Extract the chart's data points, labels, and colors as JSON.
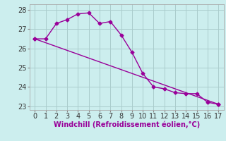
{
  "xlabel": "Windchill (Refroidissement éolien,°C)",
  "x_values": [
    0,
    1,
    2,
    3,
    4,
    5,
    6,
    7,
    8,
    9,
    10,
    11,
    12,
    13,
    14,
    15,
    16,
    17
  ],
  "line1": [
    26.5,
    26.5,
    27.3,
    27.5,
    27.8,
    27.85,
    27.3,
    27.4,
    26.7,
    25.8,
    24.7,
    24.0,
    23.9,
    23.7,
    23.65,
    23.65,
    23.2,
    23.1
  ],
  "line_color": "#990099",
  "line2_x": [
    0,
    17
  ],
  "line2_y": [
    26.5,
    23.1
  ],
  "bg_color": "#cceeee",
  "grid_color": "#aacccc",
  "ylim": [
    22.8,
    28.3
  ],
  "xlim": [
    -0.5,
    17.5
  ],
  "yticks": [
    23,
    24,
    25,
    26,
    27,
    28
  ],
  "xticks": [
    0,
    1,
    2,
    3,
    4,
    5,
    6,
    7,
    8,
    9,
    10,
    11,
    12,
    13,
    14,
    15,
    16,
    17
  ],
  "marker": "D",
  "markersize": 2.5,
  "linewidth": 1.0,
  "tick_fontsize": 7,
  "xlabel_fontsize": 7
}
